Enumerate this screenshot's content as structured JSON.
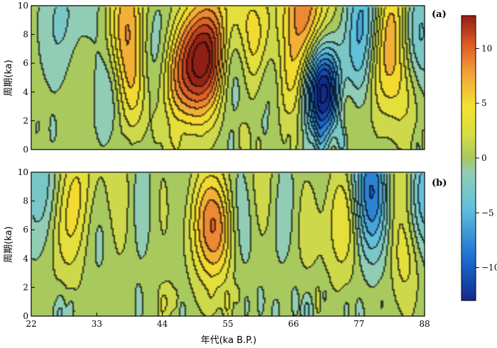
{
  "chart_data": [
    {
      "type": "heatmap",
      "panel_label": "(a)",
      "ylabel": "周期(ka)",
      "xlabel": "",
      "xlim": [
        22,
        88
      ],
      "ylim": [
        0,
        10
      ],
      "xticks": [
        "22",
        "33",
        "44",
        "55",
        "66",
        "77",
        "88"
      ],
      "yticks": [
        "0",
        "2",
        "4",
        "6",
        "8",
        "10"
      ],
      "clim": [
        -13,
        13
      ],
      "grid": false,
      "seed": 1,
      "blobs": [
        {
          "x": 27,
          "y": 8.5,
          "v": -3
        },
        {
          "x": 30,
          "y": 6,
          "v": 2
        },
        {
          "x": 33,
          "y": 9,
          "v": -2
        },
        {
          "x": 38,
          "y": 8.5,
          "v": 8
        },
        {
          "x": 39,
          "y": 4,
          "v": 4
        },
        {
          "x": 35,
          "y": 4,
          "v": -3
        },
        {
          "x": 42,
          "y": 7,
          "v": -4
        },
        {
          "x": 46,
          "y": 5,
          "v": 5
        },
        {
          "x": 49,
          "y": 6,
          "v": 8
        },
        {
          "x": 52,
          "y": 6.5,
          "v": 10
        },
        {
          "x": 56,
          "y": 6.2,
          "v": -7
        },
        {
          "x": 55,
          "y": 9,
          "v": 3
        },
        {
          "x": 59,
          "y": 7,
          "v": 7
        },
        {
          "x": 62,
          "y": 5,
          "v": -4
        },
        {
          "x": 65,
          "y": 4.5,
          "v": 4
        },
        {
          "x": 68,
          "y": 9.5,
          "v": 9
        },
        {
          "x": 70,
          "y": 4,
          "v": -9
        },
        {
          "x": 71,
          "y": 7,
          "v": -3
        },
        {
          "x": 72.5,
          "y": 3.8,
          "v": -12
        },
        {
          "x": 74,
          "y": 3.5,
          "v": 9
        },
        {
          "x": 74,
          "y": 8,
          "v": 3
        },
        {
          "x": 76,
          "y": 5,
          "v": -4
        },
        {
          "x": 78,
          "y": 9,
          "v": -8
        },
        {
          "x": 80,
          "y": 5,
          "v": 3
        },
        {
          "x": 82.5,
          "y": 8.5,
          "v": 10
        },
        {
          "x": 86,
          "y": 8,
          "v": -7
        },
        {
          "x": 85,
          "y": 4,
          "v": 3
        }
      ]
    },
    {
      "type": "heatmap",
      "panel_label": "(b)",
      "ylabel": "周期(ka)",
      "xlabel": "年代(ka B.P.)",
      "xlim": [
        22,
        88
      ],
      "ylim": [
        0,
        10
      ],
      "xticks": [
        "22",
        "33",
        "44",
        "55",
        "66",
        "77",
        "88"
      ],
      "yticks": [
        "0",
        "2",
        "4",
        "6",
        "8",
        "10"
      ],
      "clim": [
        -13,
        13
      ],
      "grid": false,
      "seed": 2,
      "blobs": [
        {
          "x": 24,
          "y": 8.5,
          "v": -4
        },
        {
          "x": 27,
          "y": 6,
          "v": 3
        },
        {
          "x": 30,
          "y": 8.5,
          "v": 5
        },
        {
          "x": 33,
          "y": 7,
          "v": -4
        },
        {
          "x": 37,
          "y": 8,
          "v": 5
        },
        {
          "x": 40,
          "y": 8,
          "v": -5
        },
        {
          "x": 44,
          "y": 8,
          "v": 4
        },
        {
          "x": 47,
          "y": 8,
          "v": -4
        },
        {
          "x": 50,
          "y": 7,
          "v": 5
        },
        {
          "x": 53.5,
          "y": 6.2,
          "v": 8
        },
        {
          "x": 57,
          "y": 7,
          "v": -5
        },
        {
          "x": 61,
          "y": 8,
          "v": 5
        },
        {
          "x": 64,
          "y": 7.5,
          "v": -5
        },
        {
          "x": 68,
          "y": 7,
          "v": 4
        },
        {
          "x": 71,
          "y": 7.5,
          "v": -3
        },
        {
          "x": 74.5,
          "y": 7,
          "v": 7
        },
        {
          "x": 78,
          "y": 8,
          "v": -5
        },
        {
          "x": 80.5,
          "y": 9,
          "v": -9
        },
        {
          "x": 83.5,
          "y": 9,
          "v": 10
        },
        {
          "x": 87,
          "y": 8.5,
          "v": -8
        },
        {
          "x": 85,
          "y": 4,
          "v": 3
        }
      ]
    }
  ],
  "colorbar": {
    "ticks": [
      "10",
      "5",
      "0",
      "−5",
      "−10"
    ],
    "tick_values": [
      10,
      5,
      0,
      -5,
      -10
    ],
    "range": [
      -13,
      13
    ]
  }
}
